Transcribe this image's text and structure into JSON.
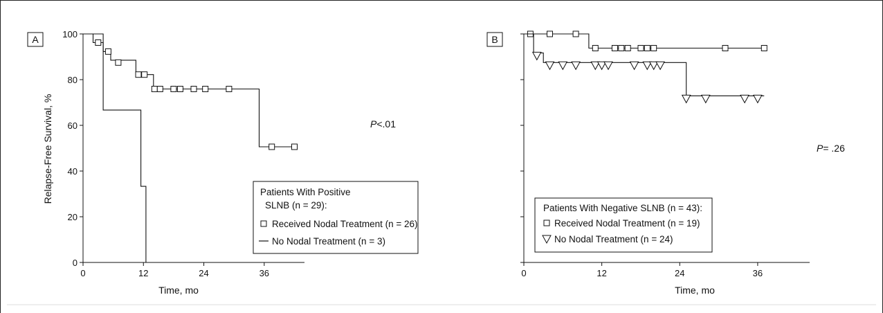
{
  "chart_data": [
    {
      "panel": "A",
      "type": "line",
      "step": true,
      "xlabel": "Time, mo",
      "ylabel": "Relapse-Free Survival, %",
      "xlim": [
        0,
        44
      ],
      "ylim": [
        0,
        100
      ],
      "xticks": [
        0,
        12,
        24,
        36
      ],
      "yticks": [
        0,
        20,
        40,
        60,
        80,
        100
      ],
      "p_value": {
        "italic": "P",
        "rest": "<.01"
      },
      "legend": {
        "title_line1": "Patients With Positive",
        "title_line2": "SLNB (n = 29):",
        "entries": [
          "Received Nodal Treatment (n = 26)",
          "No Nodal Treatment (n = 3)"
        ]
      },
      "series": [
        {
          "name": "Received Nodal Treatment (n = 26)",
          "marker": "square",
          "steps": [
            [
              0,
              100
            ],
            [
              2,
              100
            ],
            [
              2,
              96.2
            ],
            [
              4,
              96.2
            ],
            [
              4,
              92.3
            ],
            [
              5.5,
              92.3
            ],
            [
              5.5,
              88.5
            ],
            [
              10.5,
              88.5
            ],
            [
              10.5,
              82.2
            ],
            [
              14,
              82.2
            ],
            [
              14,
              75.9
            ],
            [
              35,
              75.9
            ],
            [
              35,
              50.6
            ],
            [
              42,
              50.6
            ]
          ],
          "censored": [
            [
              3,
              96.2
            ],
            [
              5,
              92.3
            ],
            [
              7,
              87.5
            ],
            [
              11,
              82.2
            ],
            [
              12.2,
              82.2
            ],
            [
              14.2,
              75.9
            ],
            [
              15.3,
              75.9
            ],
            [
              18,
              75.9
            ],
            [
              19.3,
              75.9
            ],
            [
              22,
              75.9
            ],
            [
              24.3,
              75.9
            ],
            [
              29,
              75.9
            ],
            [
              37.5,
              50.6
            ],
            [
              42,
              50.6
            ]
          ]
        },
        {
          "name": "No Nodal Treatment (n = 3)",
          "marker": "none",
          "steps": [
            [
              0,
              100
            ],
            [
              4,
              100
            ],
            [
              4,
              66.7
            ],
            [
              11.5,
              66.7
            ],
            [
              11.5,
              33.3
            ],
            [
              12.5,
              33.3
            ],
            [
              12.5,
              0
            ]
          ],
          "censored": []
        }
      ]
    },
    {
      "panel": "B",
      "type": "line",
      "step": true,
      "xlabel": "Time, mo",
      "ylabel": "",
      "xlim": [
        0,
        44
      ],
      "ylim": [
        0,
        100
      ],
      "xticks": [
        0,
        12,
        24,
        36
      ],
      "yticks": [
        0,
        20,
        40,
        60,
        80,
        100
      ],
      "p_value": {
        "italic": "P",
        "rest": "= .26"
      },
      "legend": {
        "title_line1": "Patients With Negative SLNB (n = 43):",
        "title_line2": "",
        "entries": [
          "Received Nodal Treatment (n = 19)",
          "No Nodal Treatment (n = 24)"
        ]
      },
      "series": [
        {
          "name": "Received Nodal Treatment (n = 19)",
          "marker": "square",
          "steps": [
            [
              0,
              100
            ],
            [
              10,
              100
            ],
            [
              10,
              93.8
            ],
            [
              37,
              93.8
            ]
          ],
          "censored": [
            [
              1,
              100
            ],
            [
              4,
              100
            ],
            [
              8,
              100
            ],
            [
              11,
              93.8
            ],
            [
              14,
              93.8
            ],
            [
              15,
              93.8
            ],
            [
              16,
              93.8
            ],
            [
              18,
              93.8
            ],
            [
              19,
              93.8
            ],
            [
              20,
              93.8
            ],
            [
              31,
              93.8
            ],
            [
              37,
              93.8
            ]
          ]
        },
        {
          "name": "No Nodal Treatment (n = 24)",
          "marker": "triangle-down",
          "steps": [
            [
              0,
              100
            ],
            [
              1.5,
              100
            ],
            [
              1.5,
              91.7
            ],
            [
              3,
              91.7
            ],
            [
              3,
              87.5
            ],
            [
              25,
              87.5
            ],
            [
              25,
              72.9
            ],
            [
              37,
              72.9
            ]
          ],
          "censored": [
            [
              2,
              91.7
            ],
            [
              4,
              87.5
            ],
            [
              6,
              87.5
            ],
            [
              8,
              87.5
            ],
            [
              11,
              87.5
            ],
            [
              12,
              87.5
            ],
            [
              13,
              87.5
            ],
            [
              17,
              87.5
            ],
            [
              19,
              87.5
            ],
            [
              20,
              87.5
            ],
            [
              21,
              87.5
            ],
            [
              25,
              72.9
            ],
            [
              28,
              72.9
            ],
            [
              34,
              72.9
            ],
            [
              36,
              72.9
            ]
          ]
        }
      ]
    }
  ]
}
